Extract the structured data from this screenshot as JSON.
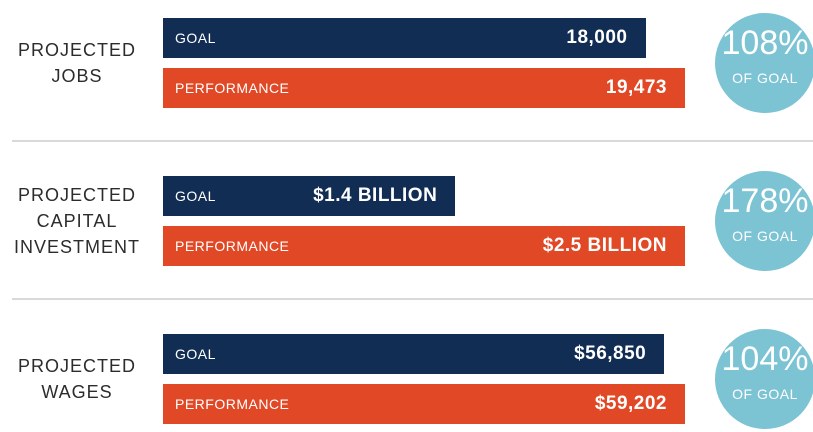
{
  "chart_data": [
    {
      "type": "bar",
      "title": "PROJECTED JOBS",
      "categories": [
        "GOAL",
        "PERFORMANCE"
      ],
      "values": [
        18000,
        19473
      ],
      "value_labels": [
        "18,000",
        "19,473"
      ],
      "colors": [
        "#122d54",
        "#e04826"
      ],
      "annotation": "108%",
      "annotation_sub": "OF GOAL",
      "annotation_color": "#7cc3d4"
    },
    {
      "type": "bar",
      "title": "PROJECTED CAPITAL INVESTMENT",
      "categories": [
        "GOAL",
        "PERFORMANCE"
      ],
      "values": [
        1.4,
        2.5
      ],
      "value_labels": [
        "$1.4 BILLION",
        "$2.5 BILLION"
      ],
      "colors": [
        "#122d54",
        "#e04826"
      ],
      "annotation": "178%",
      "annotation_sub": "OF GOAL",
      "annotation_color": "#7cc3d4"
    },
    {
      "type": "bar",
      "title": "PROJECTED WAGES",
      "categories": [
        "GOAL",
        "PERFORMANCE"
      ],
      "values": [
        56850,
        59202
      ],
      "value_labels": [
        "$56,850",
        "$59,202"
      ],
      "colors": [
        "#122d54",
        "#e04826"
      ],
      "annotation": "104%",
      "annotation_sub": "OF GOAL",
      "annotation_color": "#7cc3d4"
    }
  ]
}
